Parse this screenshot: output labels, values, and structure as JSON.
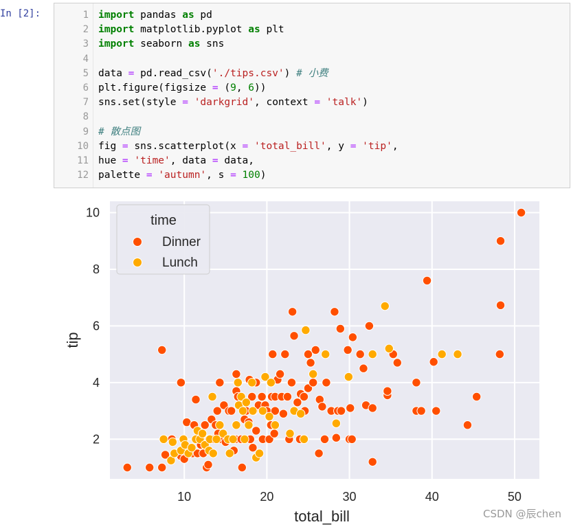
{
  "cell": {
    "prompt": "In  [2]:"
  },
  "code_lines": [
    {
      "n": "1",
      "tokens": [
        {
          "t": "import",
          "c": "kw"
        },
        {
          "t": " pandas ",
          "c": "tx"
        },
        {
          "t": "as",
          "c": "kw"
        },
        {
          "t": " pd",
          "c": "tx"
        }
      ]
    },
    {
      "n": "2",
      "tokens": [
        {
          "t": "import",
          "c": "kw"
        },
        {
          "t": " matplotlib.pyplot ",
          "c": "tx"
        },
        {
          "t": "as",
          "c": "kw"
        },
        {
          "t": " plt",
          "c": "tx"
        }
      ]
    },
    {
      "n": "3",
      "tokens": [
        {
          "t": "import",
          "c": "kw"
        },
        {
          "t": " seaborn ",
          "c": "tx"
        },
        {
          "t": "as",
          "c": "kw"
        },
        {
          "t": " sns",
          "c": "tx"
        }
      ]
    },
    {
      "n": "4",
      "tokens": []
    },
    {
      "n": "5",
      "tokens": [
        {
          "t": "data ",
          "c": "tx"
        },
        {
          "t": "=",
          "c": "op"
        },
        {
          "t": " pd.read_csv(",
          "c": "tx"
        },
        {
          "t": "'./tips.csv'",
          "c": "str"
        },
        {
          "t": ") ",
          "c": "tx"
        },
        {
          "t": "# 小费",
          "c": "cm"
        }
      ]
    },
    {
      "n": "6",
      "tokens": [
        {
          "t": "plt.figure(figsize ",
          "c": "tx"
        },
        {
          "t": "=",
          "c": "op"
        },
        {
          "t": " (",
          "c": "tx"
        },
        {
          "t": "9",
          "c": "num"
        },
        {
          "t": ", ",
          "c": "tx"
        },
        {
          "t": "6",
          "c": "num"
        },
        {
          "t": "))",
          "c": "tx"
        }
      ]
    },
    {
      "n": "7",
      "tokens": [
        {
          "t": "sns.set(style ",
          "c": "tx"
        },
        {
          "t": "=",
          "c": "op"
        },
        {
          "t": " ",
          "c": "tx"
        },
        {
          "t": "'darkgrid'",
          "c": "str"
        },
        {
          "t": ", context ",
          "c": "tx"
        },
        {
          "t": "=",
          "c": "op"
        },
        {
          "t": " ",
          "c": "tx"
        },
        {
          "t": "'talk'",
          "c": "str"
        },
        {
          "t": ")",
          "c": "tx"
        }
      ]
    },
    {
      "n": "8",
      "tokens": []
    },
    {
      "n": "9",
      "tokens": [
        {
          "t": "# 散点图",
          "c": "cm"
        }
      ]
    },
    {
      "n": "10",
      "tokens": [
        {
          "t": "fig ",
          "c": "tx"
        },
        {
          "t": "=",
          "c": "op"
        },
        {
          "t": " sns.scatterplot(x ",
          "c": "tx"
        },
        {
          "t": "=",
          "c": "op"
        },
        {
          "t": " ",
          "c": "tx"
        },
        {
          "t": "'total_bill'",
          "c": "str"
        },
        {
          "t": ", y ",
          "c": "tx"
        },
        {
          "t": "=",
          "c": "op"
        },
        {
          "t": " ",
          "c": "tx"
        },
        {
          "t": "'tip'",
          "c": "str"
        },
        {
          "t": ",",
          "c": "tx"
        }
      ]
    },
    {
      "n": "11",
      "tokens": [
        {
          "t": "hue ",
          "c": "tx"
        },
        {
          "t": "=",
          "c": "op"
        },
        {
          "t": " ",
          "c": "tx"
        },
        {
          "t": "'time'",
          "c": "str"
        },
        {
          "t": ", data ",
          "c": "tx"
        },
        {
          "t": "=",
          "c": "op"
        },
        {
          "t": " data,",
          "c": "tx"
        }
      ]
    },
    {
      "n": "12",
      "tokens": [
        {
          "t": "palette ",
          "c": "tx"
        },
        {
          "t": "=",
          "c": "op"
        },
        {
          "t": " ",
          "c": "tx"
        },
        {
          "t": "'autumn'",
          "c": "str"
        },
        {
          "t": ", s ",
          "c": "tx"
        },
        {
          "t": "=",
          "c": "op"
        },
        {
          "t": " ",
          "c": "tx"
        },
        {
          "t": "100",
          "c": "num"
        },
        {
          "t": ")",
          "c": "tx"
        }
      ]
    }
  ],
  "chart_data": {
    "type": "scatter",
    "xlabel": "total_bill",
    "ylabel": "tip",
    "xlim": [
      1.0,
      53.0
    ],
    "ylim": [
      0.6,
      10.4
    ],
    "xticks": [
      10,
      20,
      30,
      40,
      50
    ],
    "yticks": [
      2,
      4,
      6,
      8,
      10
    ],
    "grid": true,
    "background": "#eaeaf2",
    "legend": {
      "title": "time",
      "placement": "top-left"
    },
    "series": [
      {
        "name": "Dinner",
        "color": "#ff4f00",
        "points": [
          [
            3.1,
            1.0
          ],
          [
            5.8,
            1.0
          ],
          [
            7.3,
            1.0
          ],
          [
            7.3,
            5.15
          ],
          [
            7.7,
            1.45
          ],
          [
            8.5,
            2.0
          ],
          [
            9.0,
            1.5
          ],
          [
            9.6,
            1.4
          ],
          [
            9.6,
            4.0
          ],
          [
            10.0,
            1.3
          ],
          [
            10.3,
            2.6
          ],
          [
            10.3,
            1.7
          ],
          [
            10.6,
            1.5
          ],
          [
            11.0,
            1.5
          ],
          [
            11.2,
            2.5
          ],
          [
            11.4,
            3.4
          ],
          [
            11.6,
            1.5
          ],
          [
            11.7,
            2.0
          ],
          [
            12.0,
            1.8
          ],
          [
            12.3,
            1.5
          ],
          [
            12.5,
            2.5
          ],
          [
            12.7,
            1.0
          ],
          [
            12.9,
            1.1
          ],
          [
            13.0,
            2.0
          ],
          [
            13.3,
            2.7
          ],
          [
            13.4,
            2.0
          ],
          [
            13.8,
            2.5
          ],
          [
            14.0,
            3.0
          ],
          [
            14.1,
            2.2
          ],
          [
            14.3,
            4.0
          ],
          [
            14.5,
            2.0
          ],
          [
            14.8,
            3.2
          ],
          [
            15.0,
            1.9
          ],
          [
            15.4,
            3.0
          ],
          [
            15.5,
            2.0
          ],
          [
            15.7,
            3.0
          ],
          [
            16.0,
            1.6
          ],
          [
            16.2,
            2.0
          ],
          [
            16.3,
            3.7
          ],
          [
            16.3,
            4.3
          ],
          [
            16.5,
            3.5
          ],
          [
            16.9,
            2.0
          ],
          [
            17.0,
            1.0
          ],
          [
            17.3,
            2.7
          ],
          [
            17.5,
            3.0
          ],
          [
            17.8,
            2.6
          ],
          [
            17.9,
            4.1
          ],
          [
            18.0,
            2.0
          ],
          [
            18.2,
            3.5
          ],
          [
            18.3,
            1.7
          ],
          [
            18.4,
            3.0
          ],
          [
            18.7,
            2.3
          ],
          [
            18.7,
            4.0
          ],
          [
            19.0,
            3.2
          ],
          [
            19.4,
            3.5
          ],
          [
            19.5,
            2.0
          ],
          [
            19.8,
            3.2
          ],
          [
            20.0,
            3.0
          ],
          [
            20.3,
            2.0
          ],
          [
            20.5,
            2.5
          ],
          [
            20.6,
            3.5
          ],
          [
            20.7,
            5.0
          ],
          [
            20.9,
            2.2
          ],
          [
            21.0,
            3.0
          ],
          [
            21.0,
            3.5
          ],
          [
            21.3,
            4.1
          ],
          [
            21.6,
            4.3
          ],
          [
            21.8,
            3.5
          ],
          [
            22.0,
            2.9
          ],
          [
            22.2,
            5.0
          ],
          [
            22.5,
            3.5
          ],
          [
            22.7,
            2.0
          ],
          [
            23.0,
            4.0
          ],
          [
            23.1,
            6.5
          ],
          [
            23.3,
            5.65
          ],
          [
            23.7,
            3.3
          ],
          [
            24.0,
            2.0
          ],
          [
            24.1,
            3.6
          ],
          [
            24.5,
            3.5
          ],
          [
            24.5,
            2.0
          ],
          [
            24.6,
            3.0
          ],
          [
            25.0,
            3.8
          ],
          [
            25.0,
            5.0
          ],
          [
            25.3,
            4.7
          ],
          [
            25.6,
            4.0
          ],
          [
            25.9,
            5.15
          ],
          [
            26.3,
            1.5
          ],
          [
            26.4,
            3.4
          ],
          [
            26.7,
            3.15
          ],
          [
            27.0,
            2.0
          ],
          [
            27.2,
            4.0
          ],
          [
            27.8,
            3.0
          ],
          [
            28.2,
            6.5
          ],
          [
            28.4,
            2.05
          ],
          [
            28.6,
            3.0
          ],
          [
            28.9,
            5.9
          ],
          [
            29.0,
            3.0
          ],
          [
            29.8,
            5.15
          ],
          [
            30.0,
            2.0
          ],
          [
            30.1,
            3.1
          ],
          [
            30.3,
            2.0
          ],
          [
            30.4,
            5.6
          ],
          [
            31.3,
            5.0
          ],
          [
            31.7,
            4.5
          ],
          [
            32.0,
            3.2
          ],
          [
            32.4,
            6.0
          ],
          [
            32.8,
            3.1
          ],
          [
            32.8,
            1.2
          ],
          [
            34.6,
            3.55
          ],
          [
            34.6,
            3.7
          ],
          [
            35.3,
            5.0
          ],
          [
            35.8,
            4.7
          ],
          [
            38.1,
            4.0
          ],
          [
            38.1,
            3.0
          ],
          [
            38.7,
            3.0
          ],
          [
            39.4,
            7.6
          ],
          [
            40.2,
            4.73
          ],
          [
            40.5,
            3.0
          ],
          [
            43.1,
            5.0
          ],
          [
            44.3,
            2.5
          ],
          [
            45.4,
            3.5
          ],
          [
            48.2,
            5.0
          ],
          [
            48.3,
            6.73
          ],
          [
            48.3,
            9.0
          ],
          [
            50.8,
            10.0
          ]
        ]
      },
      {
        "name": "Lunch",
        "color": "#ffaa00",
        "points": [
          [
            7.5,
            2.0
          ],
          [
            8.4,
            1.25
          ],
          [
            8.6,
            1.9
          ],
          [
            8.8,
            1.5
          ],
          [
            9.6,
            1.6
          ],
          [
            9.9,
            2.0
          ],
          [
            10.1,
            1.8
          ],
          [
            10.5,
            1.5
          ],
          [
            10.9,
            1.7
          ],
          [
            11.4,
            2.0
          ],
          [
            11.6,
            2.3
          ],
          [
            11.9,
            2.0
          ],
          [
            12.2,
            2.2
          ],
          [
            12.5,
            1.8
          ],
          [
            13.0,
            1.6
          ],
          [
            13.1,
            2.0
          ],
          [
            13.4,
            3.5
          ],
          [
            13.5,
            1.5
          ],
          [
            13.9,
            2.0
          ],
          [
            14.3,
            2.5
          ],
          [
            14.7,
            2.2
          ],
          [
            15.3,
            2.0
          ],
          [
            15.5,
            1.5
          ],
          [
            15.9,
            2.0
          ],
          [
            16.3,
            2.5
          ],
          [
            16.5,
            4.0
          ],
          [
            16.6,
            3.2
          ],
          [
            16.9,
            3.5
          ],
          [
            17.1,
            3.0
          ],
          [
            17.3,
            2.0
          ],
          [
            17.5,
            3.3
          ],
          [
            17.8,
            2.5
          ],
          [
            18.2,
            4.0
          ],
          [
            18.3,
            3.0
          ],
          [
            18.7,
            1.35
          ],
          [
            19.1,
            1.5
          ],
          [
            19.5,
            3.0
          ],
          [
            19.8,
            4.2
          ],
          [
            20.3,
            2.8
          ],
          [
            20.5,
            4.0
          ],
          [
            21.0,
            2.5
          ],
          [
            22.8,
            2.2
          ],
          [
            23.3,
            3.0
          ],
          [
            24.1,
            2.9
          ],
          [
            24.5,
            2.0
          ],
          [
            24.7,
            5.85
          ],
          [
            25.6,
            4.3
          ],
          [
            27.1,
            5.0
          ],
          [
            28.4,
            2.56
          ],
          [
            29.9,
            4.2
          ],
          [
            32.8,
            5.0
          ],
          [
            34.3,
            6.7
          ],
          [
            34.8,
            5.2
          ],
          [
            41.2,
            5.0
          ],
          [
            43.1,
            5.0
          ]
        ]
      }
    ]
  },
  "watermark": "CSDN @辰chen"
}
